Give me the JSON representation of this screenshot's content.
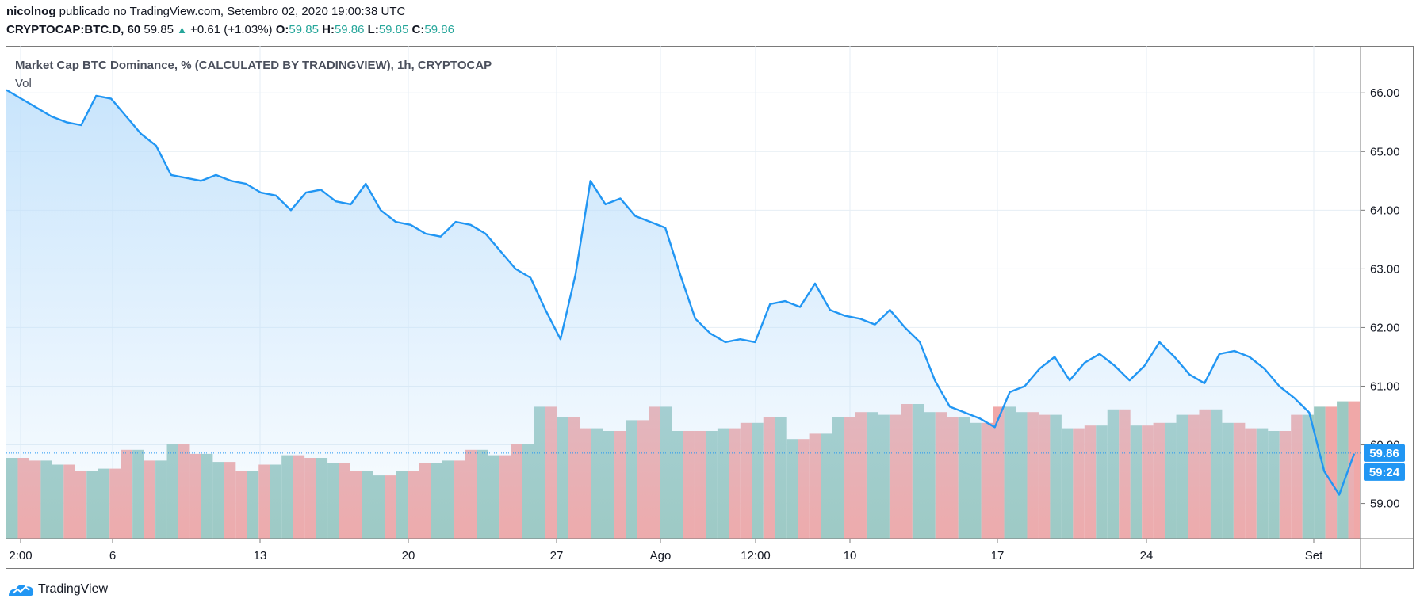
{
  "header": {
    "author": "nicolnog",
    "published_text": "publicado no TradingView.com, Setembro 02, 2020 19:00:38 UTC",
    "symbol": "CRYPTOCAP:BTC.D, 60",
    "last": "59.85",
    "change": "+0.61 (+1.03%)",
    "o_label": "O:",
    "o_value": "59.85",
    "h_label": "H:",
    "h_value": "59.86",
    "l_label": "L:",
    "l_value": "59.85",
    "c_label": "C:",
    "c_value": "59.86"
  },
  "legend": {
    "title": "Market Cap BTC Dominance, % (CALCULATED BY TRADINGVIEW), 1h, CRYPTOCAP",
    "vol": "Vol"
  },
  "brand": {
    "name": "TradingView"
  },
  "chart_data": {
    "type": "area",
    "ylim": [
      58.4,
      66.8
    ],
    "y_ticks": [
      "66.00",
      "65.00",
      "64.00",
      "63.00",
      "62.00",
      "61.00",
      "60.00",
      "59.00"
    ],
    "x_ticks": [
      "2:00",
      "6",
      "13",
      "20",
      "27",
      "Ago",
      "12:00",
      "10",
      "17",
      "24",
      "Set"
    ],
    "price_label": "59.86",
    "countdown_label": "59:24",
    "colors": {
      "line": "#2196f3",
      "fill": "#bbdefb",
      "vol_up": "#9cc9c2",
      "vol_down": "#f0a8a8",
      "grid": "#e6eef4",
      "axis_text": "#131722"
    },
    "price_series": [
      66.05,
      65.9,
      65.75,
      65.6,
      65.5,
      65.45,
      65.95,
      65.9,
      65.6,
      65.3,
      65.1,
      64.6,
      64.55,
      64.5,
      64.6,
      64.5,
      64.45,
      64.3,
      64.25,
      64.0,
      64.3,
      64.35,
      64.15,
      64.1,
      64.45,
      64.0,
      63.8,
      63.75,
      63.6,
      63.55,
      63.8,
      63.75,
      63.6,
      63.3,
      63.0,
      62.85,
      62.3,
      61.8,
      62.9,
      64.5,
      64.1,
      64.2,
      63.9,
      63.8,
      63.7,
      62.9,
      62.15,
      61.9,
      61.75,
      61.8,
      61.75,
      62.4,
      62.45,
      62.35,
      62.75,
      62.3,
      62.2,
      62.15,
      62.05,
      62.3,
      62.0,
      61.75,
      61.1,
      60.65,
      60.55,
      60.45,
      60.3,
      60.9,
      61.0,
      61.3,
      61.5,
      61.1,
      61.4,
      61.55,
      61.35,
      61.1,
      61.35,
      61.75,
      61.5,
      61.2,
      61.05,
      61.55,
      61.6,
      61.5,
      61.3,
      61.0,
      60.8,
      60.55,
      59.55,
      59.15,
      59.85
    ],
    "volume_series": [
      0.6,
      0.58,
      0.55,
      0.5,
      0.52,
      0.66,
      0.58,
      0.7,
      0.63,
      0.57,
      0.5,
      0.55,
      0.62,
      0.6,
      0.56,
      0.5,
      0.47,
      0.5,
      0.56,
      0.58,
      0.66,
      0.62,
      0.7,
      0.98,
      0.9,
      0.82,
      0.8,
      0.88,
      0.98,
      0.8,
      0.8,
      0.82,
      0.86,
      0.9,
      0.74,
      0.78,
      0.9,
      0.94,
      0.92,
      1.0,
      0.94,
      0.9,
      0.86,
      0.98,
      0.94,
      0.92,
      0.82,
      0.84,
      0.96,
      0.84,
      0.86,
      0.92,
      0.96,
      0.86,
      0.82,
      0.8,
      0.92,
      0.98,
      1.02
    ],
    "volume_up_flags": [
      1,
      0,
      1,
      0,
      1,
      0,
      0,
      1,
      0,
      1,
      0,
      0,
      1,
      0,
      1,
      0,
      1,
      1,
      0,
      1,
      0,
      1,
      0,
      1,
      1,
      0,
      1,
      1,
      0,
      1,
      0,
      1,
      0,
      0,
      1,
      0,
      1,
      0,
      1,
      0,
      1,
      0,
      1,
      0,
      1,
      0,
      1,
      0,
      1,
      1,
      0,
      1,
      0,
      1,
      0,
      1,
      0,
      1,
      1
    ]
  }
}
